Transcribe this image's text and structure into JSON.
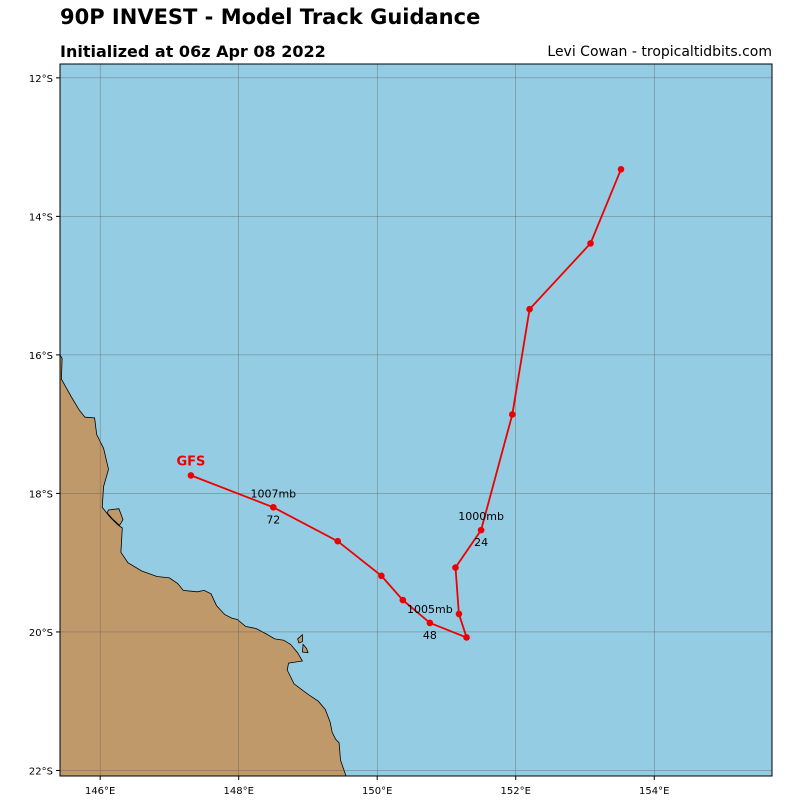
{
  "header": {
    "title": "90P INVEST - Model Track Guidance",
    "subtitle": "Initialized at 06z Apr 08 2022",
    "credit": "Levi Cowan - tropicaltidbits.com"
  },
  "colors": {
    "ocean": "#94cde3",
    "land": "#c0996b",
    "track": "#ee0000",
    "grid": "#555555"
  },
  "axes": {
    "lon_ticks": [
      {
        "value": 146,
        "label": "146°E"
      },
      {
        "value": 148,
        "label": "148°E"
      },
      {
        "value": 150,
        "label": "150°E"
      },
      {
        "value": 152,
        "label": "152°E"
      },
      {
        "value": 154,
        "label": "154°E"
      }
    ],
    "lat_ticks": [
      {
        "value": -12,
        "label": "12°S"
      },
      {
        "value": -14,
        "label": "14°S"
      },
      {
        "value": -16,
        "label": "16°S"
      },
      {
        "value": -18,
        "label": "18°S"
      },
      {
        "value": -20,
        "label": "20°S"
      },
      {
        "value": -22,
        "label": "22°S"
      }
    ],
    "lon_range": [
      145.42,
      155.7
    ],
    "lat_range": [
      -22.08,
      -11.8
    ]
  },
  "track": {
    "model": "GFS",
    "points": [
      {
        "lon": 153.52,
        "lat": -13.32
      },
      {
        "lon": 153.08,
        "lat": -14.39
      },
      {
        "lon": 152.2,
        "lat": -15.34
      },
      {
        "lon": 151.95,
        "lat": -16.86
      },
      {
        "lon": 151.5,
        "lat": -18.53
      },
      {
        "lon": 151.13,
        "lat": -19.07
      },
      {
        "lon": 151.18,
        "lat": -19.74
      },
      {
        "lon": 151.29,
        "lat": -20.08
      },
      {
        "lon": 150.76,
        "lat": -19.87
      },
      {
        "lon": 150.37,
        "lat": -19.54
      },
      {
        "lon": 150.06,
        "lat": -19.19
      },
      {
        "lon": 149.43,
        "lat": -18.69
      },
      {
        "lon": 148.5,
        "lat": -18.2
      },
      {
        "lon": 147.31,
        "lat": -17.74
      }
    ],
    "labels": [
      {
        "lon": 151.5,
        "lat": -18.53,
        "pressure": "1000mb",
        "hour": "24"
      },
      {
        "lon": 150.76,
        "lat": -19.87,
        "pressure": "1005mb",
        "hour": "48"
      },
      {
        "lon": 148.5,
        "lat": -18.2,
        "pressure": "1007mb",
        "hour": "72"
      }
    ]
  },
  "land": {
    "mainland": [
      [
        145.42,
        -16.0
      ],
      [
        145.45,
        -16.05
      ],
      [
        145.44,
        -16.35
      ],
      [
        145.58,
        -16.6
      ],
      [
        145.7,
        -16.8
      ],
      [
        145.78,
        -16.9
      ],
      [
        145.92,
        -16.91
      ],
      [
        145.95,
        -17.15
      ],
      [
        146.05,
        -17.35
      ],
      [
        146.12,
        -17.65
      ],
      [
        146.05,
        -17.9
      ],
      [
        146.03,
        -18.2
      ],
      [
        146.15,
        -18.35
      ],
      [
        146.25,
        -18.45
      ],
      [
        146.32,
        -18.5
      ],
      [
        146.3,
        -18.85
      ],
      [
        146.4,
        -19.0
      ],
      [
        146.6,
        -19.12
      ],
      [
        146.82,
        -19.2
      ],
      [
        147.0,
        -19.22
      ],
      [
        147.12,
        -19.3
      ],
      [
        147.2,
        -19.4
      ],
      [
        147.4,
        -19.42
      ],
      [
        147.5,
        -19.4
      ],
      [
        147.6,
        -19.45
      ],
      [
        147.68,
        -19.62
      ],
      [
        147.8,
        -19.75
      ],
      [
        147.9,
        -19.8
      ],
      [
        147.98,
        -19.82
      ],
      [
        148.1,
        -19.92
      ],
      [
        148.25,
        -19.95
      ],
      [
        148.4,
        -20.03
      ],
      [
        148.52,
        -20.1
      ],
      [
        148.65,
        -20.12
      ],
      [
        148.75,
        -20.18
      ],
      [
        148.85,
        -20.3
      ],
      [
        148.92,
        -20.42
      ],
      [
        148.72,
        -20.45
      ],
      [
        148.7,
        -20.55
      ],
      [
        148.8,
        -20.75
      ],
      [
        149.0,
        -20.9
      ],
      [
        149.15,
        -21.0
      ],
      [
        149.25,
        -21.12
      ],
      [
        149.32,
        -21.3
      ],
      [
        149.35,
        -21.45
      ],
      [
        149.4,
        -21.55
      ],
      [
        149.45,
        -21.6
      ],
      [
        149.47,
        -21.85
      ],
      [
        149.55,
        -22.08
      ],
      [
        145.42,
        -22.08
      ]
    ],
    "islands": [
      [
        [
          146.12,
          -18.24
        ],
        [
          146.27,
          -18.22
        ],
        [
          146.33,
          -18.38
        ],
        [
          146.28,
          -18.46
        ],
        [
          146.18,
          -18.37
        ],
        [
          146.1,
          -18.28
        ]
      ],
      [
        [
          148.85,
          -20.1
        ],
        [
          148.92,
          -20.04
        ],
        [
          148.92,
          -20.14
        ],
        [
          148.87,
          -20.16
        ]
      ],
      [
        [
          148.93,
          -20.18
        ],
        [
          148.98,
          -20.24
        ],
        [
          149.0,
          -20.3
        ],
        [
          148.92,
          -20.29
        ]
      ]
    ]
  }
}
